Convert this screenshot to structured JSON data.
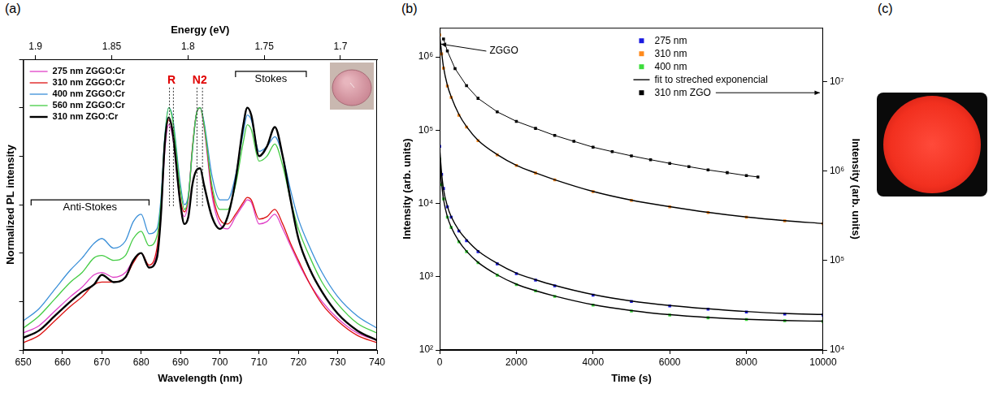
{
  "chart_data": [
    {
      "type": "line",
      "label": "(a)",
      "x_label": "Wavelength (nm)",
      "x2_label": "Energy (eV)",
      "y_label": "Normalized PL intensity",
      "xlim": [
        650,
        740
      ],
      "xticks": [
        650,
        660,
        670,
        680,
        690,
        700,
        710,
        720,
        730,
        740
      ],
      "x2lim": [
        1.908,
        1.676
      ],
      "x2ticks": [
        1.9,
        1.85,
        1.8,
        1.75,
        1.7
      ],
      "ylim": [
        0,
        1.2
      ],
      "yticks": [
        0,
        0.2,
        0.4,
        0.6,
        0.8,
        1,
        1.2
      ],
      "tick_labels": "x",
      "grid": false,
      "legend": "upper left",
      "x": [
        650,
        654,
        658,
        662,
        665,
        668,
        670,
        673,
        676,
        678,
        680,
        682,
        684,
        685,
        686,
        687,
        688,
        690,
        691,
        692,
        693,
        694,
        695,
        696,
        698,
        700,
        702,
        704,
        706,
        707,
        708,
        710,
        712,
        714,
        716,
        718,
        720,
        723,
        726,
        730,
        735,
        740
      ],
      "series": [
        {
          "name": "275 nm ZGGO:Cr",
          "color": "#e040c8",
          "line_style": "solid",
          "marker": "none",
          "values": [
            0.07,
            0.1,
            0.16,
            0.22,
            0.26,
            0.31,
            0.32,
            0.3,
            0.32,
            0.37,
            0.4,
            0.34,
            0.4,
            0.55,
            0.82,
            0.93,
            0.88,
            0.6,
            0.55,
            0.62,
            0.82,
            0.97,
            1.0,
            0.92,
            0.64,
            0.52,
            0.5,
            0.55,
            0.6,
            0.62,
            0.61,
            0.52,
            0.53,
            0.56,
            0.5,
            0.43,
            0.36,
            0.27,
            0.2,
            0.13,
            0.07,
            0.04
          ]
        },
        {
          "name": "310 nm ZGGO:Cr",
          "color": "#dd1111",
          "line_style": "solid",
          "marker": "none",
          "values": [
            0.03,
            0.06,
            0.12,
            0.18,
            0.22,
            0.27,
            0.28,
            0.28,
            0.3,
            0.36,
            0.4,
            0.35,
            0.42,
            0.58,
            0.85,
            0.95,
            0.9,
            0.62,
            0.57,
            0.63,
            0.83,
            0.97,
            1.0,
            0.93,
            0.66,
            0.54,
            0.52,
            0.56,
            0.61,
            0.63,
            0.62,
            0.54,
            0.55,
            0.58,
            0.52,
            0.44,
            0.37,
            0.27,
            0.19,
            0.12,
            0.06,
            0.03
          ]
        },
        {
          "name": "400 nm ZGGO:Cr",
          "color": "#3a8fd8",
          "line_style": "solid",
          "marker": "none",
          "values": [
            0.12,
            0.17,
            0.25,
            0.33,
            0.38,
            0.44,
            0.46,
            0.42,
            0.45,
            0.53,
            0.56,
            0.48,
            0.5,
            0.62,
            0.88,
            1.0,
            0.96,
            0.68,
            0.6,
            0.64,
            0.82,
            0.97,
            1.0,
            0.94,
            0.72,
            0.62,
            0.62,
            0.72,
            0.9,
            0.97,
            0.95,
            0.82,
            0.84,
            0.88,
            0.8,
            0.66,
            0.54,
            0.42,
            0.32,
            0.22,
            0.14,
            0.09
          ]
        },
        {
          "name": "560 nm ZGGO:Cr",
          "color": "#44cc44",
          "line_style": "solid",
          "marker": "none",
          "values": [
            0.09,
            0.14,
            0.21,
            0.28,
            0.32,
            0.38,
            0.39,
            0.37,
            0.39,
            0.46,
            0.49,
            0.43,
            0.47,
            0.6,
            0.87,
            1.0,
            0.95,
            0.66,
            0.58,
            0.63,
            0.82,
            0.97,
            1.0,
            0.93,
            0.68,
            0.58,
            0.58,
            0.68,
            0.86,
            0.93,
            0.91,
            0.78,
            0.8,
            0.85,
            0.76,
            0.62,
            0.5,
            0.38,
            0.28,
            0.19,
            0.11,
            0.07
          ]
        },
        {
          "name": "310 nm ZGO:Cr",
          "color": "#000000",
          "line_style": "thick",
          "marker": "none",
          "values": [
            0.05,
            0.08,
            0.14,
            0.2,
            0.24,
            0.27,
            0.31,
            0.28,
            0.3,
            0.37,
            0.4,
            0.34,
            0.38,
            0.55,
            0.85,
            0.96,
            0.9,
            0.6,
            0.52,
            0.55,
            0.68,
            0.74,
            0.75,
            0.68,
            0.55,
            0.5,
            0.55,
            0.7,
            0.93,
            1.0,
            0.97,
            0.8,
            0.84,
            0.92,
            0.8,
            0.62,
            0.46,
            0.33,
            0.24,
            0.15,
            0.08,
            0.04
          ]
        }
      ],
      "brackets": [
        {
          "text": "Anti-Stokes",
          "x_range": [
            652,
            682
          ],
          "y": 0.62
        },
        {
          "text": "Stokes",
          "x_range": [
            704,
            722
          ],
          "y": 1.15
        }
      ],
      "line_labels": [
        {
          "text": "R",
          "lines": [
            687.2,
            688.2
          ],
          "y": 1.09
        },
        {
          "text": "N2",
          "lines": [
            694.2,
            695.6
          ],
          "y": 1.09
        }
      ]
    },
    {
      "type": "scatter",
      "label": "(b)",
      "x_label": "Time (s)",
      "y_label": "Intensity (arb. units)",
      "y2_label": "Intensity (arb. units)",
      "xlim": [
        0,
        10000
      ],
      "xticks": [
        0,
        2000,
        4000,
        6000,
        8000,
        10000
      ],
      "ylim": [
        100,
        2500000
      ],
      "yticks": [
        {
          "value": 100,
          "label": "10²"
        },
        {
          "value": 1000,
          "label": "10³"
        },
        {
          "value": 10000,
          "label": "10⁴"
        },
        {
          "value": 100000,
          "label": "10⁵"
        },
        {
          "value": 1000000,
          "label": "10⁶"
        }
      ],
      "y2lim": [
        10000,
        40000000
      ],
      "y2ticks": [
        {
          "value": 10000,
          "label": "10⁴"
        },
        {
          "value": 100000,
          "label": "10⁵"
        },
        {
          "value": 1000000,
          "label": "10⁶"
        },
        {
          "value": 10000000,
          "label": "10⁷"
        }
      ],
      "log": "y",
      "grid": false,
      "legend": "upper right",
      "fit_name": "fit to streched exponencial",
      "fit_color": "#000000",
      "annotations": [
        {
          "text": "ZGGO",
          "x": 1300,
          "y": 1200000,
          "arrow_to": [
            30,
            1500000
          ]
        }
      ],
      "x": [
        0,
        50,
        100,
        200,
        300,
        500,
        700,
        1000,
        1500,
        2000,
        2500,
        3000,
        4000,
        5000,
        6000,
        7000,
        8000,
        9000,
        10000
      ],
      "series": [
        {
          "name": "275 nm",
          "color": "#1a1ae0",
          "marker": "square",
          "line_style": "none",
          "values": [
            60000,
            25000,
            16000,
            9000,
            6500,
            4200,
            3100,
            2200,
            1500,
            1100,
            900,
            750,
            560,
            460,
            400,
            360,
            330,
            310,
            300
          ],
          "fit_values": [
            55000,
            26000,
            15500,
            9200,
            6600,
            4300,
            3200,
            2250,
            1520,
            1120,
            910,
            760,
            570,
            465,
            405,
            365,
            335,
            315,
            305
          ]
        },
        {
          "name": "310 nm",
          "color": "#ff8a1c",
          "marker": "square",
          "line_style": "none",
          "values": [
            2000000,
            1100000,
            700000,
            400000,
            280000,
            160000,
            110000,
            72000,
            46000,
            33000,
            26000,
            21000,
            14500,
            11000,
            9000,
            7500,
            6500,
            5800,
            5300
          ],
          "fit_values": [
            1900000,
            1150000,
            720000,
            410000,
            285000,
            165000,
            112000,
            73000,
            46500,
            33200,
            26100,
            21100,
            14600,
            11100,
            9050,
            7550,
            6520,
            5820,
            5320
          ]
        },
        {
          "name": "400 nm",
          "color": "#3cdc3c",
          "marker": "square",
          "line_style": "none",
          "values": [
            40000,
            18000,
            11500,
            6500,
            4700,
            3000,
            2200,
            1550,
            1050,
            780,
            640,
            540,
            410,
            340,
            300,
            275,
            260,
            250,
            245
          ],
          "fit_values": [
            38000,
            18500,
            11300,
            6600,
            4750,
            3050,
            2230,
            1570,
            1060,
            790,
            645,
            545,
            415,
            345,
            303,
            278,
            262,
            252,
            247
          ]
        },
        {
          "name": "310 nm ZGO",
          "color": "#000000",
          "marker": "square",
          "line_style": "solid",
          "axis": "y2",
          "x": [
            100,
            200,
            400,
            700,
            1000,
            1500,
            2000,
            2500,
            3000,
            3500,
            4000,
            4500,
            5000,
            5500,
            6000,
            6500,
            7000,
            7500,
            8000,
            8300
          ],
          "values": [
            30000000,
            22000000,
            14000000,
            9000000,
            6500000,
            4600000,
            3600000,
            3000000,
            2500000,
            2150000,
            1850000,
            1650000,
            1480000,
            1340000,
            1220000,
            1120000,
            1030000,
            960000,
            890000,
            860000
          ]
        }
      ]
    },
    {
      "type": "image",
      "label": "(c)"
    }
  ]
}
